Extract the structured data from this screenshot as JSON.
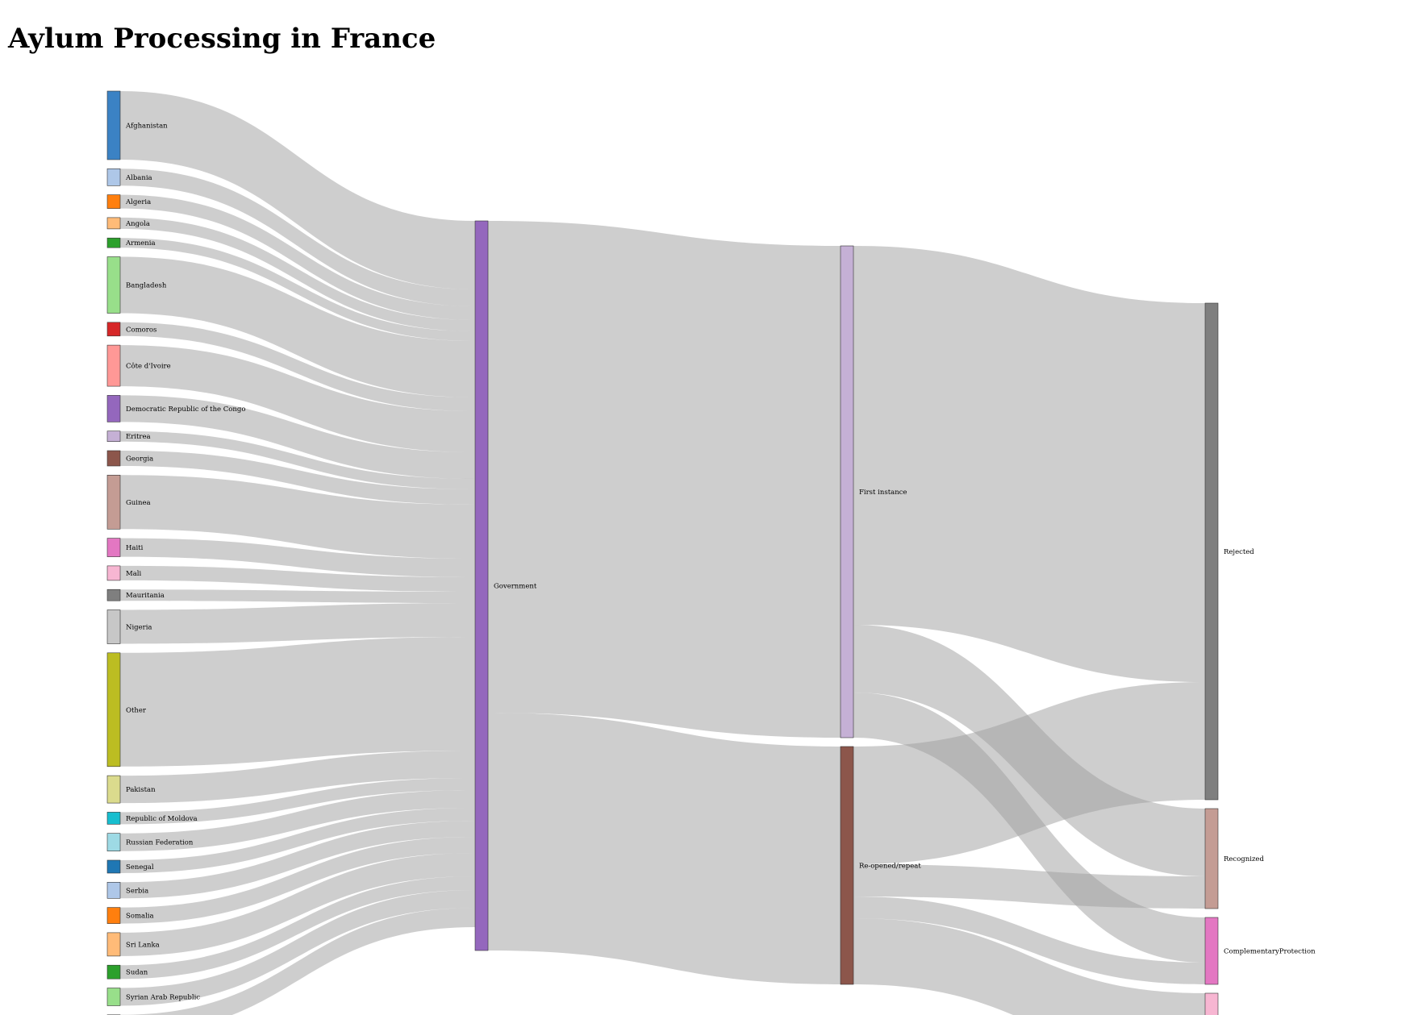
{
  "title": "Aylum Processing in France",
  "chart_data": {
    "type": "sankey",
    "units": "relative flow (estimated from link widths)",
    "nodes": [
      {
        "id": "afg",
        "label": "Afghanistan",
        "stage": 0,
        "color": "#3b82c4"
      },
      {
        "id": "alb",
        "label": "Albania",
        "stage": 0,
        "color": "#aec7e8"
      },
      {
        "id": "alg",
        "label": "Algeria",
        "stage": 0,
        "color": "#ff7f0e"
      },
      {
        "id": "ang",
        "label": "Angola",
        "stage": 0,
        "color": "#ffbb78"
      },
      {
        "id": "arm",
        "label": "Armenia",
        "stage": 0,
        "color": "#2ca02c"
      },
      {
        "id": "ban",
        "label": "Bangladesh",
        "stage": 0,
        "color": "#98df8a"
      },
      {
        "id": "com",
        "label": "Comoros",
        "stage": 0,
        "color": "#d62728"
      },
      {
        "id": "civ",
        "label": "Côte d'Ivoire",
        "stage": 0,
        "color": "#ff9896"
      },
      {
        "id": "drc",
        "label": "Democratic Republic of the Congo",
        "stage": 0,
        "color": "#9467bd"
      },
      {
        "id": "eri",
        "label": "Eritrea",
        "stage": 0,
        "color": "#c5b0d5"
      },
      {
        "id": "geo",
        "label": "Georgia",
        "stage": 0,
        "color": "#8c564b"
      },
      {
        "id": "gui",
        "label": "Guinea",
        "stage": 0,
        "color": "#c49c94"
      },
      {
        "id": "hai",
        "label": "Haiti",
        "stage": 0,
        "color": "#e377c2"
      },
      {
        "id": "mal",
        "label": "Mali",
        "stage": 0,
        "color": "#f7b6d2"
      },
      {
        "id": "mau",
        "label": "Mauritania",
        "stage": 0,
        "color": "#7f7f7f"
      },
      {
        "id": "nig",
        "label": "Nigeria",
        "stage": 0,
        "color": "#c7c7c7"
      },
      {
        "id": "oth",
        "label": "Other",
        "stage": 0,
        "color": "#bcbd22"
      },
      {
        "id": "pak",
        "label": "Pakistan",
        "stage": 0,
        "color": "#dbdb8d"
      },
      {
        "id": "mol",
        "label": "Republic of Moldova",
        "stage": 0,
        "color": "#17becf"
      },
      {
        "id": "rus",
        "label": "Russian Federation",
        "stage": 0,
        "color": "#9edae5"
      },
      {
        "id": "sen",
        "label": "Senegal",
        "stage": 0,
        "color": "#1f77b4"
      },
      {
        "id": "ser",
        "label": "Serbia",
        "stage": 0,
        "color": "#aec7e8"
      },
      {
        "id": "som",
        "label": "Somalia",
        "stage": 0,
        "color": "#ff7f0e"
      },
      {
        "id": "sri",
        "label": "Sri Lanka",
        "stage": 0,
        "color": "#ffbb78"
      },
      {
        "id": "sud",
        "label": "Sudan",
        "stage": 0,
        "color": "#2ca02c"
      },
      {
        "id": "syr",
        "label": "Syrian Arab Republic",
        "stage": 0,
        "color": "#98df8a"
      },
      {
        "id": "unk",
        "label": "",
        "stage": 0,
        "color": "#d62728"
      },
      {
        "id": "gov",
        "label": "Government",
        "stage": 1,
        "color": "#9467bd"
      },
      {
        "id": "fst",
        "label": "First instance",
        "stage": 2,
        "color": "#c5b0d5"
      },
      {
        "id": "reo",
        "label": "Re-opened/repeat",
        "stage": 2,
        "color": "#8c564b"
      },
      {
        "id": "rej",
        "label": "Rejected",
        "stage": 3,
        "color": "#7f7f7f"
      },
      {
        "id": "rec",
        "label": "Recognized",
        "stage": 3,
        "color": "#c49c94"
      },
      {
        "id": "cp",
        "label": "ComplementaryProtection",
        "stage": 3,
        "color": "#e377c2"
      },
      {
        "id": "oth_out",
        "label": "",
        "stage": 3,
        "color": "#f7b6d2"
      }
    ],
    "links": [
      {
        "source": "afg",
        "target": "gov",
        "value": 85
      },
      {
        "source": "alb",
        "target": "gov",
        "value": 21
      },
      {
        "source": "alg",
        "target": "gov",
        "value": 17
      },
      {
        "source": "ang",
        "target": "gov",
        "value": 14
      },
      {
        "source": "arm",
        "target": "gov",
        "value": 12
      },
      {
        "source": "ban",
        "target": "gov",
        "value": 70
      },
      {
        "source": "com",
        "target": "gov",
        "value": 17
      },
      {
        "source": "civ",
        "target": "gov",
        "value": 51
      },
      {
        "source": "drc",
        "target": "gov",
        "value": 33
      },
      {
        "source": "eri",
        "target": "gov",
        "value": 13
      },
      {
        "source": "geo",
        "target": "gov",
        "value": 19
      },
      {
        "source": "gui",
        "target": "gov",
        "value": 67
      },
      {
        "source": "hai",
        "target": "gov",
        "value": 23
      },
      {
        "source": "mal",
        "target": "gov",
        "value": 18
      },
      {
        "source": "mau",
        "target": "gov",
        "value": 14
      },
      {
        "source": "nig",
        "target": "gov",
        "value": 42
      },
      {
        "source": "oth",
        "target": "gov",
        "value": 141
      },
      {
        "source": "pak",
        "target": "gov",
        "value": 34
      },
      {
        "source": "mol",
        "target": "gov",
        "value": 15
      },
      {
        "source": "rus",
        "target": "gov",
        "value": 22
      },
      {
        "source": "sen",
        "target": "gov",
        "value": 16
      },
      {
        "source": "ser",
        "target": "gov",
        "value": 20
      },
      {
        "source": "som",
        "target": "gov",
        "value": 20
      },
      {
        "source": "sri",
        "target": "gov",
        "value": 29
      },
      {
        "source": "sud",
        "target": "gov",
        "value": 17
      },
      {
        "source": "syr",
        "target": "gov",
        "value": 22
      },
      {
        "source": "unk",
        "target": "gov",
        "value": 24
      },
      {
        "source": "gov",
        "target": "fst",
        "value": 610
      },
      {
        "source": "gov",
        "target": "reo",
        "value": 295
      },
      {
        "source": "fst",
        "target": "rej",
        "value": 470
      },
      {
        "source": "fst",
        "target": "rec",
        "value": 84
      },
      {
        "source": "fst",
        "target": "cp",
        "value": 56
      },
      {
        "source": "reo",
        "target": "rej",
        "value": 146
      },
      {
        "source": "reo",
        "target": "rec",
        "value": 40
      },
      {
        "source": "reo",
        "target": "cp",
        "value": 27
      },
      {
        "source": "reo",
        "target": "oth_out",
        "value": 82
      }
    ]
  }
}
